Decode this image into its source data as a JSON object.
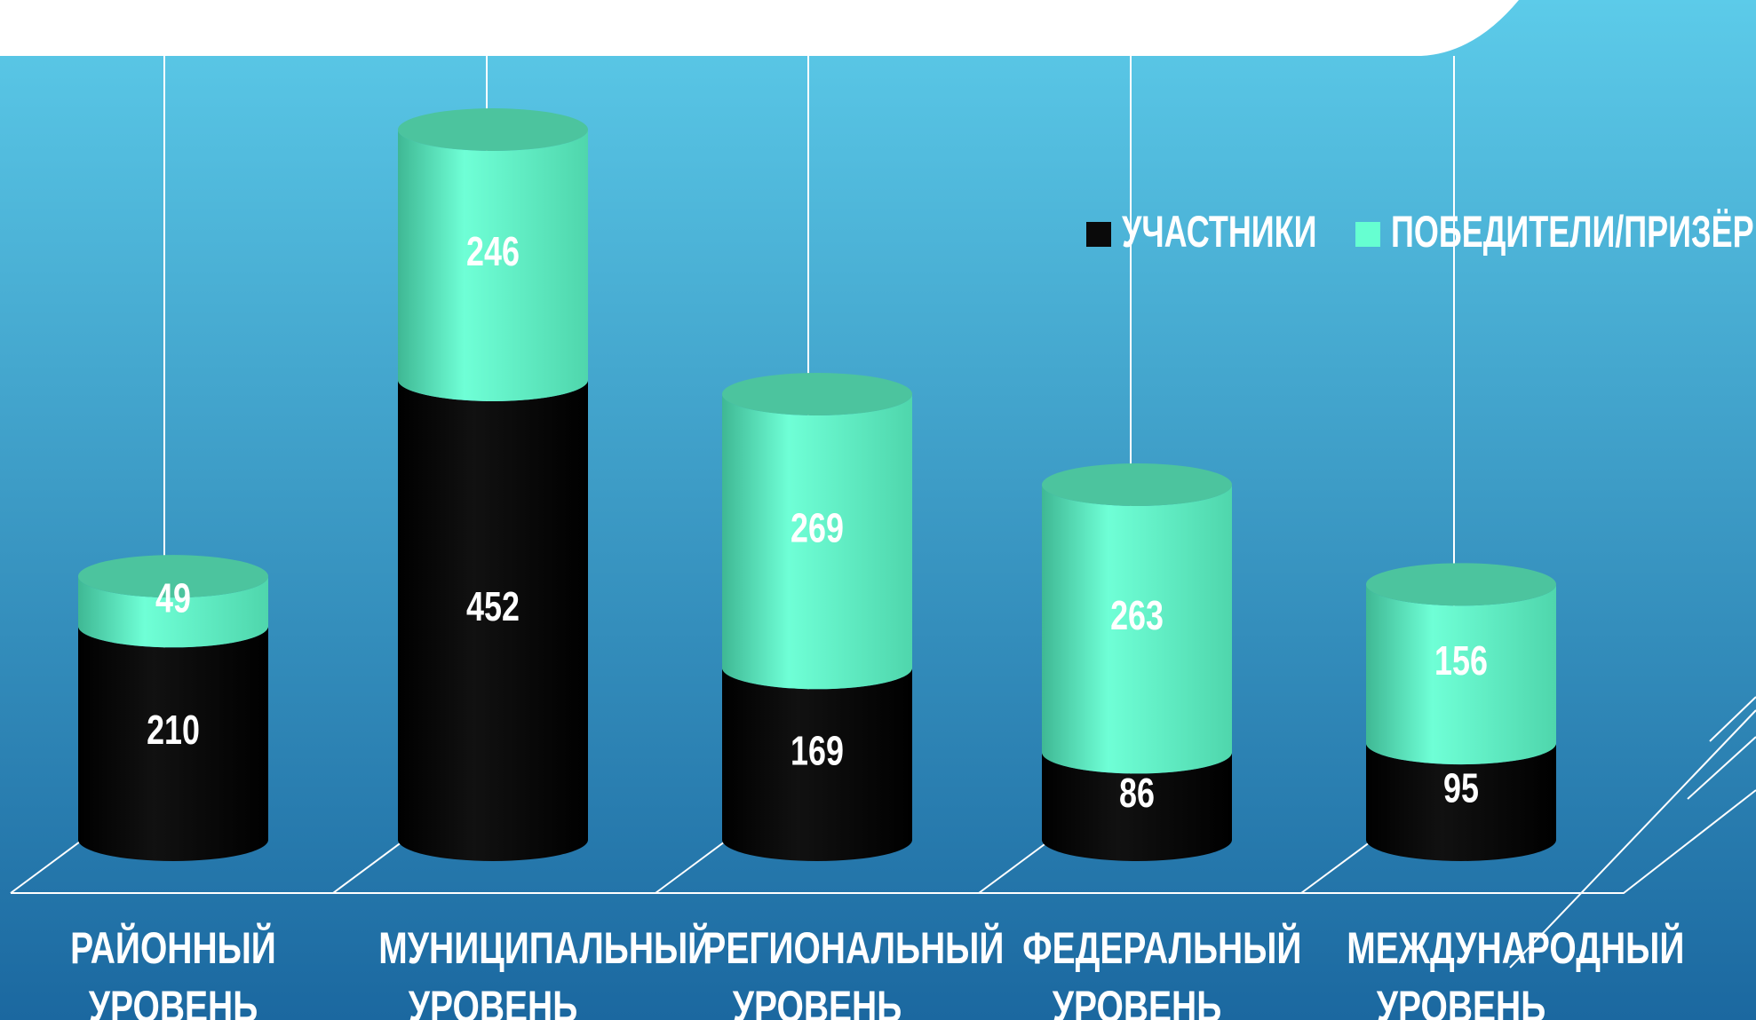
{
  "chart_data": {
    "type": "bar3d_stacked",
    "categories": [
      "РАЙОННЫЙ УРОВЕНЬ",
      "МУНИЦИПАЛЬНЫЙ УРОВЕНЬ",
      "РЕГИОНАЛЬНЫЙ УРОВЕНЬ",
      "ФЕДЕРАЛЬНЫЙ УРОВЕНЬ",
      "МЕЖДУНАРОДНЫЙ УРОВЕНЬ"
    ],
    "series": [
      {
        "name": "УЧАСТНИКИ",
        "color": "#0a0a0a",
        "values": [
          210,
          452,
          169,
          86,
          95
        ]
      },
      {
        "name": "ПОБЕДИТЕЛИ/ПРИЗЁРЫ",
        "color": "#66ffd1",
        "values": [
          49,
          246,
          269,
          263,
          156
        ]
      }
    ],
    "legend": "top-right",
    "grid": true
  }
}
